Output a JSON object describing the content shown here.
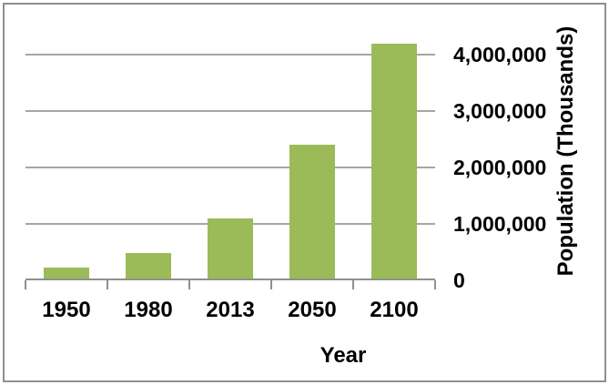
{
  "chart_data": {
    "type": "bar",
    "title": "",
    "xlabel": "Year",
    "ylabel": "Population (Thousands)",
    "categories": [
      "1950",
      "1980",
      "2013",
      "2050",
      "2100"
    ],
    "values": [
      230000,
      480000,
      1100000,
      2400000,
      4200000
    ],
    "yticks": [
      {
        "label": "0",
        "value": 0
      },
      {
        "label": "1,000,000",
        "value": 1000000
      },
      {
        "label": "2,000,000",
        "value": 2000000
      },
      {
        "label": "3,000,000",
        "value": 3000000
      },
      {
        "label": "4,000,000",
        "value": 4000000
      }
    ],
    "ylim": [
      0,
      4645000
    ],
    "grid": true,
    "legend": false,
    "yaxis_position": "right",
    "colors": {
      "bar": "#9BBB59",
      "gridline": "#A6A6A6",
      "axis": "#8F8F8F",
      "frame": "#8F8F8F",
      "text": "#000000",
      "background": "#FFFFFF"
    }
  }
}
